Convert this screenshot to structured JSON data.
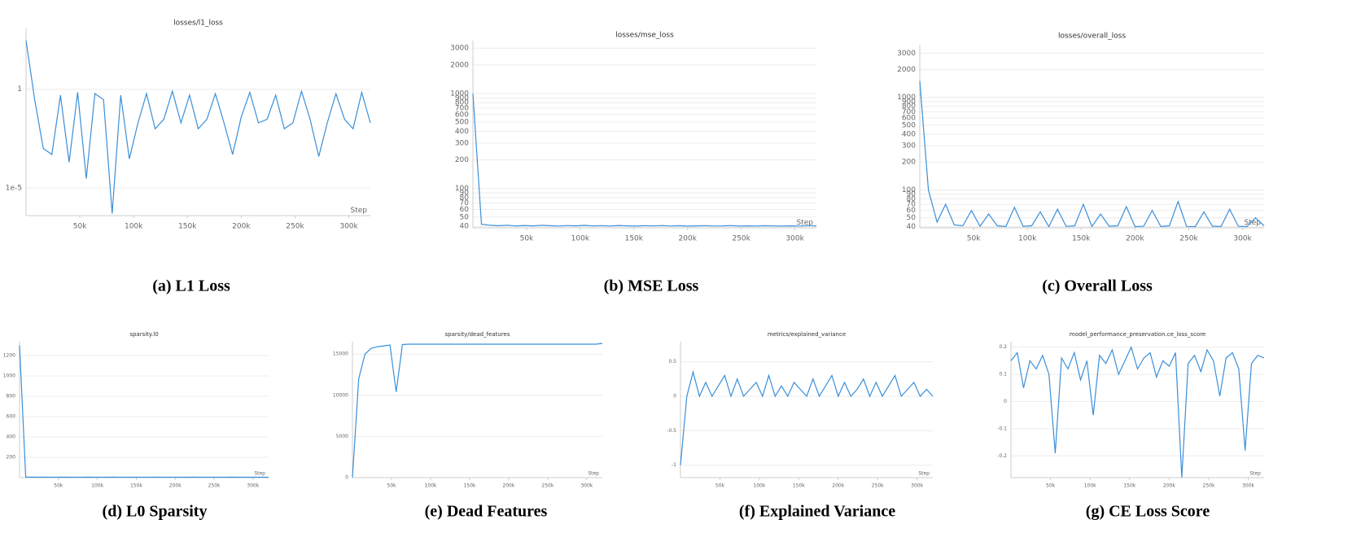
{
  "chart_data": [
    {
      "type": "line",
      "title": "losses/l1_loss",
      "caption": "(a) L1 Loss",
      "xlabel": "Step",
      "log_y": true,
      "color": "#3a8fd9",
      "xlim": [
        0,
        320000
      ],
      "ylim": [
        4e-07,
        1200
      ],
      "xticks": [
        {
          "value": 50000,
          "label": "50k"
        },
        {
          "value": 100000,
          "label": "100k"
        },
        {
          "value": 150000,
          "label": "150k"
        },
        {
          "value": 200000,
          "label": "200k"
        },
        {
          "value": 250000,
          "label": "250k"
        },
        {
          "value": 300000,
          "label": "300k"
        }
      ],
      "yticks": [
        {
          "value": 1e-05,
          "label": "1e-5"
        },
        1
      ],
      "x": [
        0,
        8000,
        16000,
        24000,
        32000,
        40000,
        48000,
        56000,
        64000,
        72000,
        80000,
        88000,
        96000,
        104000,
        112000,
        120000,
        128000,
        136000,
        144000,
        152000,
        160000,
        168000,
        176000,
        184000,
        192000,
        200000,
        208000,
        216000,
        224000,
        232000,
        240000,
        248000,
        256000,
        264000,
        272000,
        280000,
        288000,
        296000,
        304000,
        312000,
        320000
      ],
      "values": [
        300,
        0.3,
        0.001,
        0.0005,
        0.5,
        0.0002,
        0.7,
        3e-05,
        0.6,
        0.3,
        5e-07,
        0.5,
        0.0003,
        0.02,
        0.6,
        0.01,
        0.03,
        0.8,
        0.02,
        0.5,
        0.01,
        0.03,
        0.6,
        0.02,
        0.0005,
        0.04,
        0.7,
        0.02,
        0.03,
        0.5,
        0.01,
        0.02,
        0.8,
        0.03,
        0.0004,
        0.02,
        0.6,
        0.03,
        0.01,
        0.7,
        0.02
      ]
    },
    {
      "type": "line",
      "title": "losses/mse_loss",
      "caption": "(b) MSE Loss",
      "xlabel": "Step",
      "log_y": true,
      "color": "#3a8fd9",
      "xlim": [
        0,
        320000
      ],
      "ylim": [
        38.5,
        3600
      ],
      "xticks": [
        {
          "value": 50000,
          "label": "50k"
        },
        {
          "value": 100000,
          "label": "100k"
        },
        {
          "value": 150000,
          "label": "150k"
        },
        {
          "value": 200000,
          "label": "200k"
        },
        {
          "value": 250000,
          "label": "250k"
        },
        {
          "value": 300000,
          "label": "300k"
        }
      ],
      "yticks": [
        40,
        50,
        60,
        70,
        80,
        90,
        100,
        200,
        300,
        400,
        500,
        600,
        700,
        800,
        900,
        1000,
        2000,
        3000
      ],
      "x": [
        0,
        8000,
        16000,
        24000,
        32000,
        40000,
        48000,
        56000,
        64000,
        72000,
        80000,
        88000,
        96000,
        104000,
        112000,
        120000,
        128000,
        136000,
        144000,
        152000,
        160000,
        168000,
        176000,
        184000,
        192000,
        200000,
        208000,
        216000,
        224000,
        232000,
        240000,
        248000,
        256000,
        264000,
        272000,
        280000,
        288000,
        296000,
        304000,
        312000,
        320000
      ],
      "values": [
        1000,
        42,
        41,
        40.5,
        41,
        40.3,
        40.8,
        40.4,
        41,
        40.5,
        40.2,
        40.7,
        40.4,
        40.9,
        40.3,
        40.6,
        40.2,
        40.8,
        40.4,
        40.1,
        40.6,
        40.3,
        40.7,
        40.2,
        40.5,
        40.1,
        40.4,
        40.6,
        40.2,
        40.3,
        40.7,
        40.1,
        40.4,
        40.2,
        40.5,
        40.3,
        40.1,
        40.4,
        40.2,
        40.6,
        40.3
      ]
    },
    {
      "type": "line",
      "title": "losses/overall_loss",
      "caption": "(c) Overall Loss",
      "xlabel": "Step",
      "log_y": true,
      "color": "#3a8fd9",
      "xlim": [
        0,
        320000
      ],
      "ylim": [
        39,
        3700
      ],
      "xticks": [
        {
          "value": 50000,
          "label": "50k"
        },
        {
          "value": 100000,
          "label": "100k"
        },
        {
          "value": 150000,
          "label": "150k"
        },
        {
          "value": 200000,
          "label": "200k"
        },
        {
          "value": 250000,
          "label": "250k"
        },
        {
          "value": 300000,
          "label": "300k"
        }
      ],
      "yticks": [
        40,
        50,
        60,
        70,
        80,
        90,
        100,
        200,
        300,
        400,
        500,
        600,
        700,
        800,
        900,
        1000,
        2000,
        3000
      ],
      "x": [
        0,
        8000,
        16000,
        24000,
        32000,
        40000,
        48000,
        56000,
        64000,
        72000,
        80000,
        88000,
        96000,
        104000,
        112000,
        120000,
        128000,
        136000,
        144000,
        152000,
        160000,
        168000,
        176000,
        184000,
        192000,
        200000,
        208000,
        216000,
        224000,
        232000,
        240000,
        248000,
        256000,
        264000,
        272000,
        280000,
        288000,
        296000,
        304000,
        312000,
        320000
      ],
      "values": [
        1500,
        100,
        45,
        70,
        42,
        41,
        60,
        40.5,
        55,
        41,
        40.3,
        65,
        40.5,
        41,
        58,
        40.2,
        62,
        40.4,
        41,
        70,
        40.3,
        55,
        40.6,
        41,
        66,
        40.2,
        40.5,
        60,
        40.3,
        41,
        75,
        40.4,
        40.2,
        58,
        40.6,
        40.3,
        62,
        40.5,
        40.2,
        50,
        41
      ]
    },
    {
      "type": "line",
      "title": "sparsity.l0",
      "caption": "(d) L0 Sparsity",
      "xlabel": "Step",
      "log_y": false,
      "color": "#3a8fd9",
      "xlim": [
        0,
        320000
      ],
      "ylim": [
        0,
        1336
      ],
      "xticks": [
        {
          "value": 50000,
          "label": "50k"
        },
        {
          "value": 100000,
          "label": "100k"
        },
        {
          "value": 150000,
          "label": "150k"
        },
        {
          "value": 200000,
          "label": "200k"
        },
        {
          "value": 250000,
          "label": "250k"
        },
        {
          "value": 300000,
          "label": "300k"
        }
      ],
      "yticks": [
        200,
        400,
        600,
        800,
        1000,
        1200
      ],
      "x": [
        0,
        8000,
        16000,
        24000,
        32000,
        40000,
        48000,
        56000,
        64000,
        72000,
        80000,
        88000,
        96000,
        104000,
        112000,
        120000,
        128000,
        136000,
        144000,
        152000,
        160000,
        168000,
        176000,
        184000,
        192000,
        200000,
        208000,
        216000,
        224000,
        232000,
        240000,
        248000,
        256000,
        264000,
        272000,
        280000,
        288000,
        296000,
        304000,
        312000,
        320000
      ],
      "values": [
        1300,
        6,
        5,
        4,
        5,
        4,
        4,
        5,
        4,
        4,
        4,
        5,
        4,
        4,
        4,
        5,
        4,
        4,
        4,
        4,
        4,
        4,
        5,
        4,
        4,
        4,
        4,
        4,
        5,
        4,
        4,
        4,
        4,
        4,
        5,
        4,
        4,
        4,
        4,
        4,
        4
      ]
    },
    {
      "type": "line",
      "title": "sparsity/dead_features",
      "caption": "(e) Dead Features",
      "xlabel": "Step",
      "log_y": false,
      "color": "#3a8fd9",
      "xlim": [
        0,
        320000
      ],
      "ylim": [
        0,
        16500
      ],
      "xticks": [
        {
          "value": 50000,
          "label": "50k"
        },
        {
          "value": 100000,
          "label": "100k"
        },
        {
          "value": 150000,
          "label": "150k"
        },
        {
          "value": 200000,
          "label": "200k"
        },
        {
          "value": 250000,
          "label": "250k"
        },
        {
          "value": 300000,
          "label": "300k"
        }
      ],
      "yticks": [
        0,
        5000,
        10000,
        15000
      ],
      "x": [
        0,
        8000,
        16000,
        24000,
        32000,
        40000,
        48000,
        56000,
        64000,
        72000,
        80000,
        88000,
        96000,
        104000,
        112000,
        120000,
        128000,
        136000,
        144000,
        152000,
        160000,
        168000,
        176000,
        184000,
        192000,
        200000,
        208000,
        216000,
        224000,
        232000,
        240000,
        248000,
        256000,
        264000,
        272000,
        280000,
        288000,
        296000,
        304000,
        312000,
        320000
      ],
      "values": [
        0,
        12000,
        15000,
        15700,
        15900,
        16000,
        16100,
        10400,
        16150,
        16200,
        16200,
        16200,
        16200,
        16200,
        16200,
        16200,
        16200,
        16200,
        16200,
        16200,
        16200,
        16200,
        16200,
        16200,
        16200,
        16200,
        16200,
        16200,
        16200,
        16200,
        16200,
        16200,
        16200,
        16200,
        16200,
        16200,
        16200,
        16200,
        16200,
        16200,
        16300
      ]
    },
    {
      "type": "line",
      "title": "metrics/explained_variance",
      "caption": "(f) Explained Variance",
      "xlabel": "Step",
      "log_y": false,
      "color": "#3a8fd9",
      "xlim": [
        0,
        320000
      ],
      "ylim": [
        -1.18,
        0.79
      ],
      "xticks": [
        {
          "value": 50000,
          "label": "50k"
        },
        {
          "value": 100000,
          "label": "100k"
        },
        {
          "value": 150000,
          "label": "150k"
        },
        {
          "value": 200000,
          "label": "200k"
        },
        {
          "value": 250000,
          "label": "250k"
        },
        {
          "value": 300000,
          "label": "300k"
        }
      ],
      "yticks": [
        -1,
        -0.5,
        0,
        0.5
      ],
      "x": [
        0,
        8000,
        16000,
        24000,
        32000,
        40000,
        48000,
        56000,
        64000,
        72000,
        80000,
        88000,
        96000,
        104000,
        112000,
        120000,
        128000,
        136000,
        144000,
        152000,
        160000,
        168000,
        176000,
        184000,
        192000,
        200000,
        208000,
        216000,
        224000,
        232000,
        240000,
        248000,
        256000,
        264000,
        272000,
        280000,
        288000,
        296000,
        304000,
        312000,
        320000
      ],
      "values": [
        -1,
        0,
        0.35,
        0,
        0.2,
        0,
        0.15,
        0.3,
        0,
        0.25,
        0,
        0.1,
        0.2,
        0,
        0.3,
        0,
        0.15,
        0,
        0.2,
        0.1,
        0,
        0.25,
        0,
        0.15,
        0.3,
        0,
        0.2,
        0,
        0.1,
        0.25,
        0,
        0.2,
        0,
        0.15,
        0.3,
        0,
        0.1,
        0.2,
        0,
        0.1,
        0
      ]
    },
    {
      "type": "line",
      "title": "model_performance_preservation.ce_loss_score",
      "caption": "(g) CE Loss Score",
      "xlabel": "Step",
      "log_y": false,
      "color": "#3a8fd9",
      "xlim": [
        0,
        320000
      ],
      "ylim": [
        -0.28,
        0.22
      ],
      "xticks": [
        {
          "value": 50000,
          "label": "50k"
        },
        {
          "value": 100000,
          "label": "100k"
        },
        {
          "value": 150000,
          "label": "150k"
        },
        {
          "value": 200000,
          "label": "200k"
        },
        {
          "value": 250000,
          "label": "250k"
        },
        {
          "value": 300000,
          "label": "300k"
        }
      ],
      "yticks": [
        -0.2,
        -0.1,
        0,
        0.1,
        0.2
      ],
      "x": [
        0,
        8000,
        16000,
        24000,
        32000,
        40000,
        48000,
        56000,
        64000,
        72000,
        80000,
        88000,
        96000,
        104000,
        112000,
        120000,
        128000,
        136000,
        144000,
        152000,
        160000,
        168000,
        176000,
        184000,
        192000,
        200000,
        208000,
        216000,
        224000,
        232000,
        240000,
        248000,
        256000,
        264000,
        272000,
        280000,
        288000,
        296000,
        304000,
        312000,
        320000
      ],
      "values": [
        0.15,
        0.18,
        0.05,
        0.15,
        0.12,
        0.17,
        0.1,
        -0.19,
        0.16,
        0.12,
        0.18,
        0.08,
        0.15,
        -0.05,
        0.17,
        0.14,
        0.19,
        0.1,
        0.15,
        0.2,
        0.12,
        0.16,
        0.18,
        0.09,
        0.15,
        0.13,
        0.18,
        -0.28,
        0.14,
        0.17,
        0.11,
        0.19,
        0.15,
        0.02,
        0.16,
        0.18,
        0.12,
        -0.18,
        0.14,
        0.17,
        0.16
      ]
    }
  ]
}
